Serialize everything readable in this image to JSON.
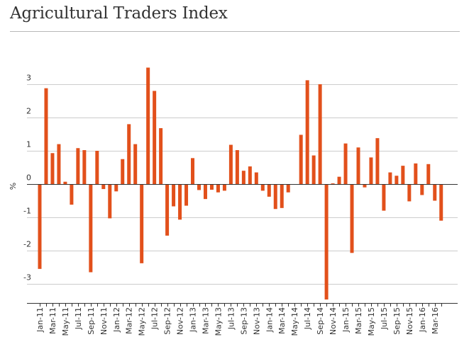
{
  "title": "Agricultural Traders Index",
  "colors": {
    "bar": "#e2501b",
    "grid": "#cccccc",
    "zero": "#333333",
    "axis": "#333333"
  },
  "chart_data": {
    "type": "bar",
    "title": "Agricultural Traders Index",
    "xlabel": "",
    "ylabel": "%",
    "ylim": [
      -3.5,
      3.5
    ],
    "yticks": [
      3,
      2,
      1,
      0,
      -1,
      -2,
      -3
    ],
    "ytick_labels": [
      "3",
      "2",
      "1",
      "0",
      "-1",
      "-2",
      "-3"
    ],
    "grid": true,
    "categories": [
      "Jan-11",
      "Feb-11",
      "Mar-11",
      "Apr-11",
      "May-11",
      "Jun-11",
      "Jul-11",
      "Aug-11",
      "Sep-11",
      "Oct-11",
      "Nov-11",
      "Dec-11",
      "Jan-12",
      "Feb-12",
      "Mar-12",
      "Apr-12",
      "May-12",
      "Jun-12",
      "Jul-12",
      "Aug-12",
      "Sep-12",
      "Oct-12",
      "Nov-12",
      "Dec-12",
      "Jan-13",
      "Feb-13",
      "Mar-13",
      "Apr-13",
      "May-13",
      "Jun-13",
      "Jul-13",
      "Aug-13",
      "Sep-13",
      "Oct-13",
      "Nov-13",
      "Dec-13",
      "Jan-14",
      "Feb-14",
      "Mar-14",
      "Apr-14",
      "May-14",
      "Jun-14",
      "Jul-14",
      "Aug-14",
      "Sep-14",
      "Oct-14",
      "Nov-14",
      "Dec-14",
      "Jan-15",
      "Feb-15",
      "Mar-15",
      "Apr-15",
      "May-15",
      "Jun-15",
      "Jul-15",
      "Aug-15",
      "Sep-15",
      "Oct-15",
      "Nov-15",
      "Dec-15",
      "Jan-16",
      "Feb-16",
      "Mar-16",
      "Apr-16"
    ],
    "tick_labels_shown": [
      "Jan-11",
      "Mar-11",
      "May-11",
      "Jul-11",
      "Sep-11",
      "Nov-11",
      "Jan-12",
      "Mar-12",
      "May-12",
      "Jul-12",
      "Sep-12",
      "Nov-12",
      "Jan-13",
      "Mar-13",
      "May-13",
      "Jul-13",
      "Sep-13",
      "Nov-13",
      "Jan-14",
      "Mar-14",
      "May-14",
      "Jul-14",
      "Sep-14",
      "Nov-14",
      "Jan-15",
      "Mar-15",
      "May-15",
      "Jul-15",
      "Sep-15",
      "Nov-15",
      "Jan-16",
      "Mar-16"
    ],
    "values": [
      -2.55,
      2.88,
      0.93,
      1.2,
      0.07,
      -0.62,
      1.08,
      1.02,
      -2.65,
      1.0,
      -0.15,
      -1.03,
      -0.22,
      0.75,
      1.8,
      1.2,
      -2.38,
      3.5,
      2.8,
      1.68,
      -1.55,
      -0.67,
      -1.07,
      -0.65,
      0.78,
      -0.18,
      -0.45,
      -0.17,
      -0.25,
      -0.2,
      1.18,
      1.02,
      0.4,
      0.53,
      0.35,
      -0.2,
      -0.38,
      -0.75,
      -0.72,
      -0.25,
      0.0,
      1.48,
      3.12,
      0.86,
      3.0,
      -3.47,
      0.02,
      0.22,
      1.22,
      -2.07,
      1.1,
      -0.1,
      0.8,
      1.38,
      -0.8,
      0.35,
      0.25,
      0.55,
      -0.52,
      0.62,
      -0.33,
      0.6,
      -0.5,
      -1.1
    ]
  }
}
